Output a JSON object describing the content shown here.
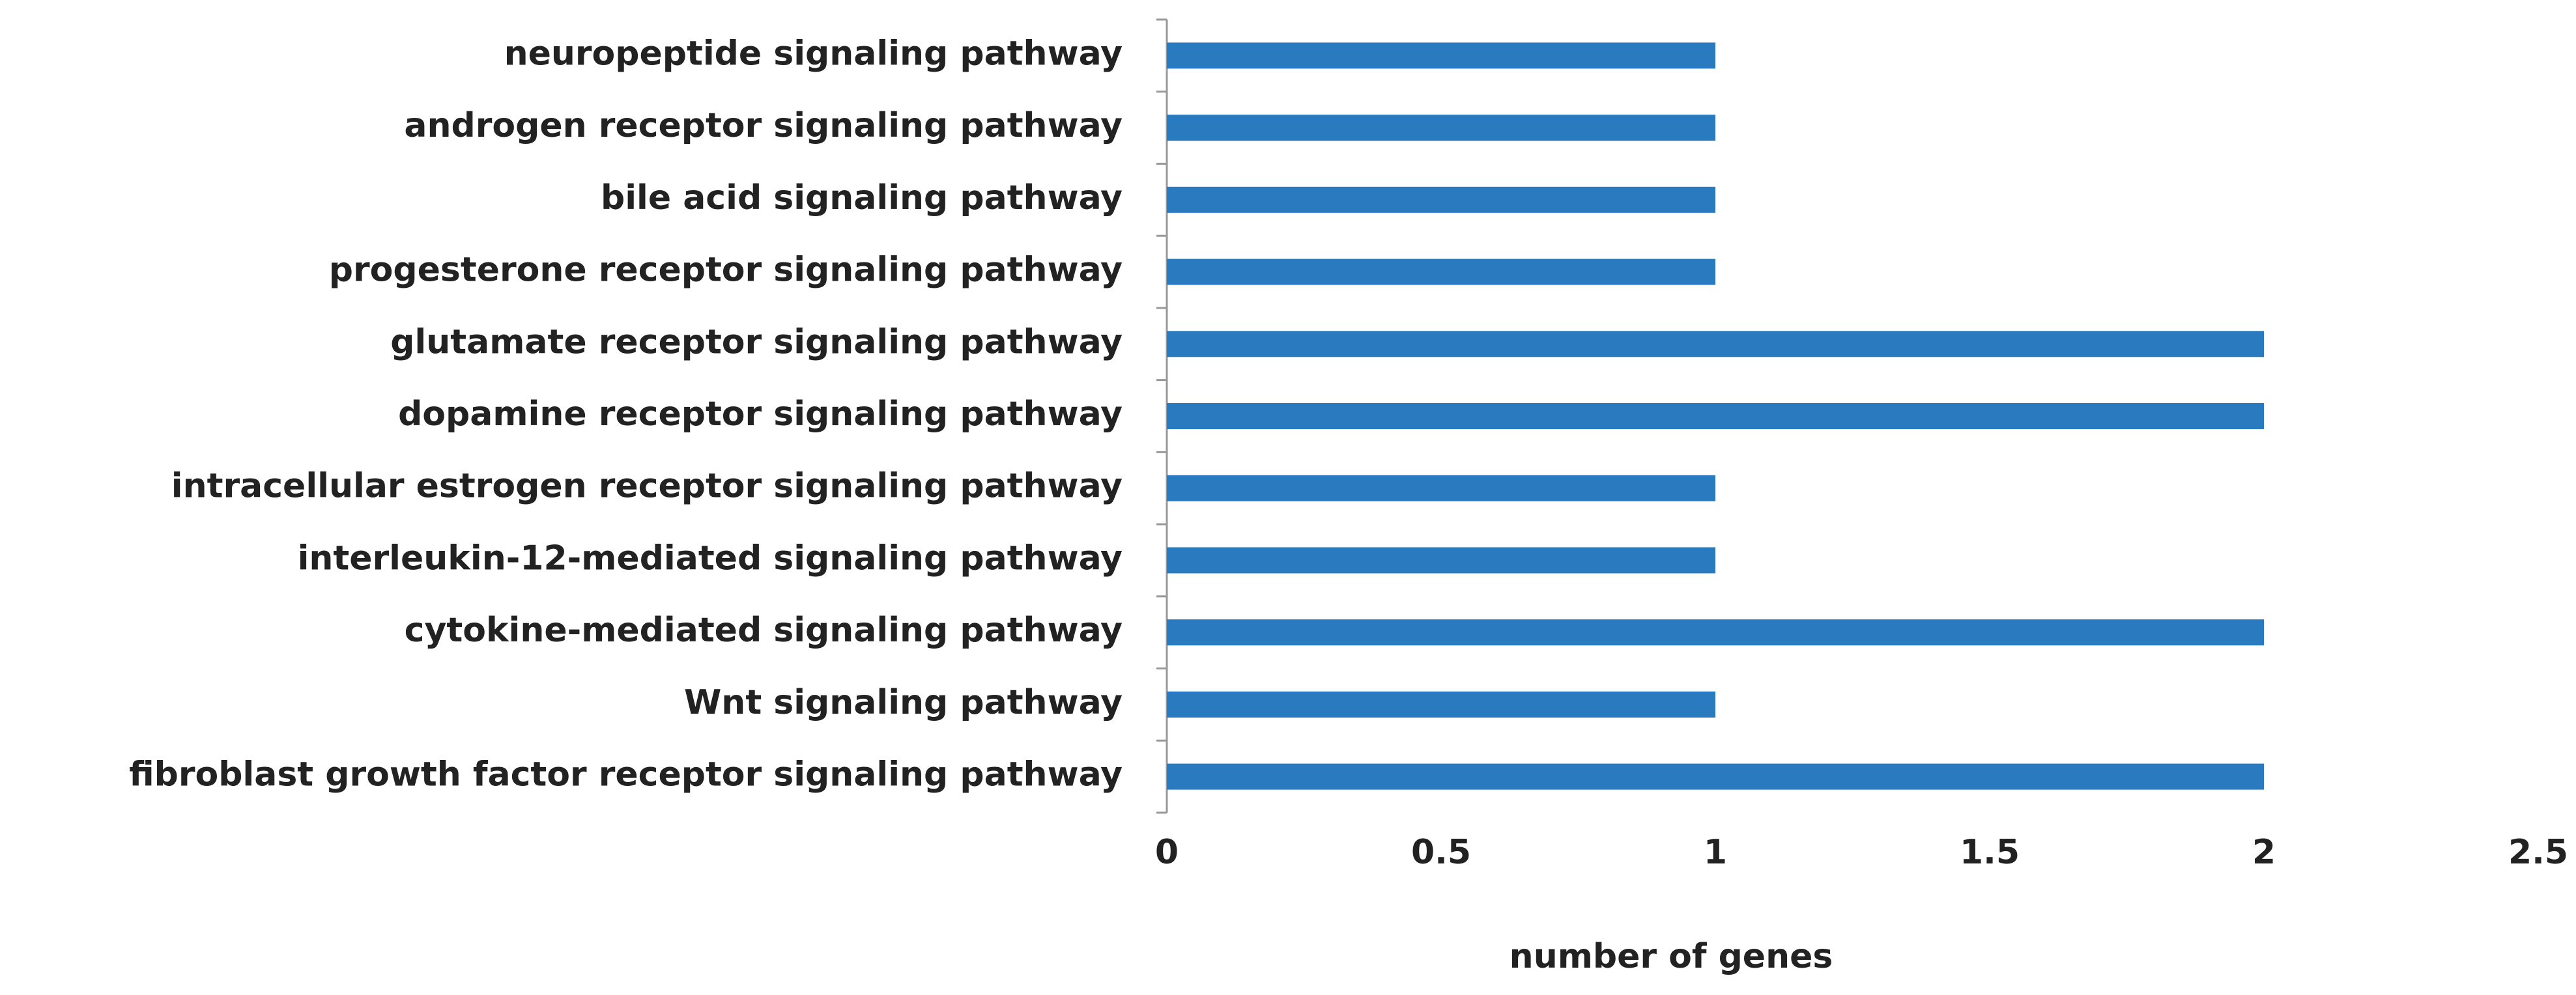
{
  "chart_data": {
    "type": "hbar",
    "categories": [
      "neuropeptide signaling pathway",
      "androgen receptor signaling pathway",
      "bile acid signaling pathway",
      "progesterone receptor signaling pathway",
      "glutamate receptor signaling pathway",
      "dopamine receptor signaling pathway",
      "intracellular estrogen receptor signaling pathway",
      "interleukin-12-mediated signaling pathway",
      "cytokine-mediated signaling pathway",
      "Wnt signaling pathway",
      "fibroblast growth factor receptor signaling pathway"
    ],
    "values": [
      1,
      1,
      1,
      1,
      2,
      2,
      1,
      1,
      2,
      1,
      2
    ],
    "color": "#2a7abf",
    "xlabel": "number of genes",
    "xlim": [
      0,
      2.5
    ],
    "xticks": [
      0,
      0.5,
      1,
      1.5,
      2,
      2.5
    ],
    "grid": false
  }
}
